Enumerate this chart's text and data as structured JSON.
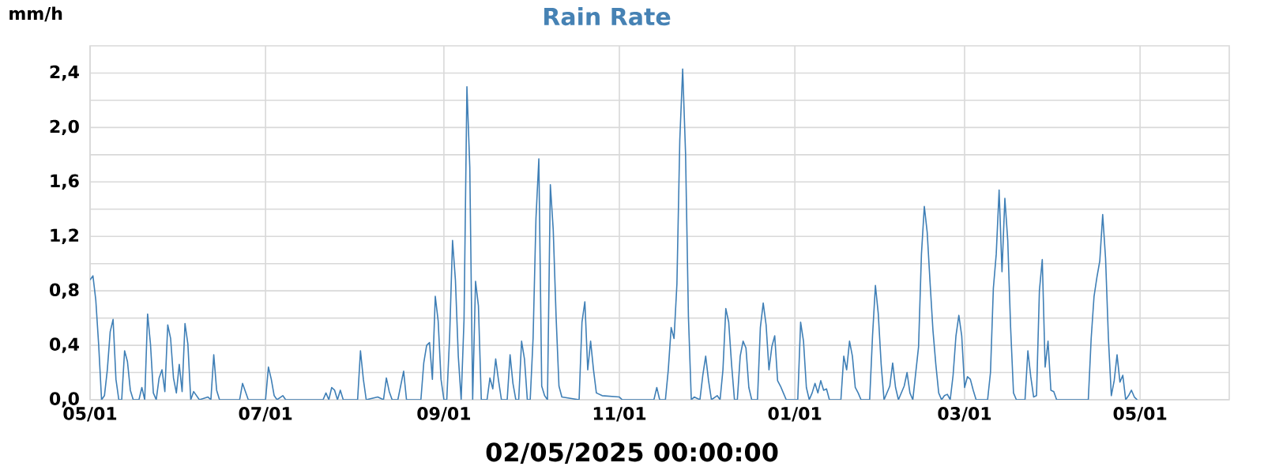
{
  "chart_data": {
    "type": "line",
    "title": "Rain Rate",
    "ylabel": "mm/h",
    "xlabel": "02/05/2025 00:00:00",
    "xlim": [
      "2024-05-01",
      "2025-06-01"
    ],
    "xticks": [
      {
        "value": "2024-05-01",
        "label": "05/01"
      },
      {
        "value": "2024-07-01",
        "label": "07/01"
      },
      {
        "value": "2024-09-01",
        "label": "09/01"
      },
      {
        "value": "2024-11-01",
        "label": "11/01"
      },
      {
        "value": "2025-01-01",
        "label": "01/01"
      },
      {
        "value": "2025-03-01",
        "label": "03/01"
      },
      {
        "value": "2025-05-01",
        "label": "05/01"
      }
    ],
    "ylim": [
      0,
      2.6
    ],
    "yticks": [
      {
        "value": 0,
        "label": "0,0"
      },
      {
        "value": 0.2,
        "label": null
      },
      {
        "value": 0.4,
        "label": "0,4"
      },
      {
        "value": 0.6,
        "label": null
      },
      {
        "value": 0.8,
        "label": "0,8"
      },
      {
        "value": 1.0,
        "label": null
      },
      {
        "value": 1.2,
        "label": "1,2"
      },
      {
        "value": 1.4,
        "label": null
      },
      {
        "value": 1.6,
        "label": "1,6"
      },
      {
        "value": 1.8,
        "label": null
      },
      {
        "value": 2.0,
        "label": "2,0"
      },
      {
        "value": 2.2,
        "label": null
      },
      {
        "value": 2.4,
        "label": "2,4"
      }
    ],
    "grid": true,
    "series": [
      {
        "color": "#3f7fb6",
        "x": [
          "2024-05-01",
          "2024-05-02",
          "2024-05-03",
          "2024-05-04",
          "2024-05-05",
          "2024-05-06",
          "2024-05-07",
          "2024-05-08",
          "2024-05-09",
          "2024-05-10",
          "2024-05-11",
          "2024-05-12",
          "2024-05-13",
          "2024-05-14",
          "2024-05-15",
          "2024-05-16",
          "2024-05-18",
          "2024-05-19",
          "2024-05-20",
          "2024-05-21",
          "2024-05-22",
          "2024-05-23",
          "2024-05-24",
          "2024-05-25",
          "2024-05-26",
          "2024-05-27",
          "2024-05-28",
          "2024-05-29",
          "2024-05-30",
          "2024-05-31",
          "2024-06-01",
          "2024-06-02",
          "2024-06-03",
          "2024-06-04",
          "2024-06-05",
          "2024-06-06",
          "2024-06-08",
          "2024-06-11",
          "2024-06-12",
          "2024-06-13",
          "2024-06-14",
          "2024-06-15",
          "2024-06-22",
          "2024-06-23",
          "2024-06-25",
          "2024-07-01",
          "2024-07-02",
          "2024-07-03",
          "2024-07-04",
          "2024-07-05",
          "2024-07-07",
          "2024-07-08",
          "2024-07-21",
          "2024-07-22",
          "2024-07-23",
          "2024-07-24",
          "2024-07-25",
          "2024-07-26",
          "2024-07-27",
          "2024-07-28",
          "2024-08-02",
          "2024-08-03",
          "2024-08-04",
          "2024-08-05",
          "2024-08-09",
          "2024-08-11",
          "2024-08-12",
          "2024-08-13",
          "2024-08-14",
          "2024-08-16",
          "2024-08-18",
          "2024-08-19",
          "2024-08-23",
          "2024-08-24",
          "2024-08-25",
          "2024-08-26",
          "2024-08-27",
          "2024-08-28",
          "2024-08-29",
          "2024-08-30",
          "2024-08-31",
          "2024-09-01",
          "2024-09-02",
          "2024-09-03",
          "2024-09-04",
          "2024-09-05",
          "2024-09-06",
          "2024-09-07",
          "2024-09-08",
          "2024-09-09",
          "2024-09-10",
          "2024-09-11",
          "2024-09-12",
          "2024-09-13",
          "2024-09-14",
          "2024-09-16",
          "2024-09-17",
          "2024-09-18",
          "2024-09-19",
          "2024-09-20",
          "2024-09-21",
          "2024-09-23",
          "2024-09-24",
          "2024-09-25",
          "2024-09-26",
          "2024-09-27",
          "2024-09-28",
          "2024-09-29",
          "2024-09-30",
          "2024-10-01",
          "2024-10-02",
          "2024-10-03",
          "2024-10-04",
          "2024-10-05",
          "2024-10-06",
          "2024-10-07",
          "2024-10-08",
          "2024-10-09",
          "2024-10-10",
          "2024-10-11",
          "2024-10-12",
          "2024-10-18",
          "2024-10-19",
          "2024-10-20",
          "2024-10-21",
          "2024-10-22",
          "2024-10-23",
          "2024-10-24",
          "2024-10-26",
          "2024-11-01",
          "2024-11-02",
          "2024-11-13",
          "2024-11-14",
          "2024-11-15",
          "2024-11-17",
          "2024-11-18",
          "2024-11-19",
          "2024-11-20",
          "2024-11-21",
          "2024-11-22",
          "2024-11-23",
          "2024-11-24",
          "2024-11-25",
          "2024-11-26",
          "2024-11-27",
          "2024-11-29",
          "2024-11-30",
          "2024-12-01",
          "2024-12-02",
          "2024-12-03",
          "2024-12-05",
          "2024-12-06",
          "2024-12-07",
          "2024-12-08",
          "2024-12-09",
          "2024-12-10",
          "2024-12-11",
          "2024-12-12",
          "2024-12-13",
          "2024-12-14",
          "2024-12-15",
          "2024-12-16",
          "2024-12-17",
          "2024-12-19",
          "2024-12-20",
          "2024-12-21",
          "2024-12-22",
          "2024-12-23",
          "2024-12-24",
          "2024-12-25",
          "2024-12-26",
          "2024-12-27",
          "2024-12-28",
          "2024-12-29",
          "2025-01-02",
          "2025-01-03",
          "2025-01-04",
          "2025-01-05",
          "2025-01-06",
          "2025-01-07",
          "2025-01-08",
          "2025-01-09",
          "2025-01-10",
          "2025-01-11",
          "2025-01-12",
          "2025-01-13",
          "2025-01-17",
          "2025-01-18",
          "2025-01-19",
          "2025-01-20",
          "2025-01-21",
          "2025-01-22",
          "2025-01-23",
          "2025-01-24",
          "2025-01-27",
          "2025-01-28",
          "2025-01-29",
          "2025-01-30",
          "2025-01-31",
          "2025-02-01",
          "2025-02-03",
          "2025-02-04",
          "2025-02-05",
          "2025-02-06",
          "2025-02-08",
          "2025-02-09",
          "2025-02-10",
          "2025-02-11",
          "2025-02-13",
          "2025-02-14",
          "2025-02-15",
          "2025-02-16",
          "2025-02-17",
          "2025-02-18",
          "2025-02-19",
          "2025-02-20",
          "2025-02-21",
          "2025-02-22",
          "2025-02-23",
          "2025-02-24",
          "2025-02-25",
          "2025-02-26",
          "2025-02-27",
          "2025-02-28",
          "2025-03-01",
          "2025-03-02",
          "2025-03-03",
          "2025-03-04",
          "2025-03-05",
          "2025-03-09",
          "2025-03-10",
          "2025-03-11",
          "2025-03-12",
          "2025-03-13",
          "2025-03-14",
          "2025-03-15",
          "2025-03-16",
          "2025-03-17",
          "2025-03-18",
          "2025-03-19",
          "2025-03-22",
          "2025-03-23",
          "2025-03-24",
          "2025-03-25",
          "2025-03-26",
          "2025-03-27",
          "2025-03-28",
          "2025-03-29",
          "2025-03-30",
          "2025-03-31",
          "2025-04-01",
          "2025-04-02",
          "2025-04-13",
          "2025-04-14",
          "2025-04-15",
          "2025-04-16",
          "2025-04-17",
          "2025-04-18",
          "2025-04-19",
          "2025-04-20",
          "2025-04-21",
          "2025-04-22",
          "2025-04-23",
          "2025-04-24",
          "2025-04-25",
          "2025-04-26",
          "2025-04-27",
          "2025-04-28",
          "2025-04-29",
          "2025-04-30"
        ],
        "values": [
          0.88,
          0.91,
          0.73,
          0.4,
          0,
          0.03,
          0.22,
          0.5,
          0.59,
          0.15,
          0,
          0,
          0.36,
          0.28,
          0.07,
          0,
          0,
          0.09,
          0,
          0.63,
          0.41,
          0.05,
          0,
          0.16,
          0.22,
          0.06,
          0.55,
          0.45,
          0.16,
          0.05,
          0.26,
          0.06,
          0.56,
          0.41,
          0,
          0.06,
          0,
          0.02,
          0,
          0.33,
          0.07,
          0,
          0,
          0.12,
          0,
          0,
          0.24,
          0.15,
          0.03,
          0,
          0.03,
          0,
          0,
          0.05,
          0,
          0.09,
          0.07,
          0,
          0.07,
          0,
          0,
          0.36,
          0.15,
          0,
          0.02,
          0,
          0.16,
          0.06,
          0,
          0,
          0.21,
          0,
          0,
          0,
          0.27,
          0.4,
          0.42,
          0.15,
          0.76,
          0.58,
          0.15,
          0,
          0,
          0.47,
          1.17,
          0.88,
          0.32,
          0,
          0.59,
          2.3,
          1.71,
          0,
          0.87,
          0.69,
          0,
          0,
          0.16,
          0.08,
          0.3,
          0.14,
          0,
          0,
          0.33,
          0.12,
          0,
          0,
          0.43,
          0.3,
          0,
          0,
          0.45,
          1.33,
          1.77,
          0.1,
          0.03,
          0,
          1.58,
          1.25,
          0.61,
          0.1,
          0.02,
          0,
          0.57,
          0.72,
          0.22,
          0.43,
          0.22,
          0.05,
          0.03,
          0.02,
          0,
          0,
          0.09,
          0,
          0,
          0.22,
          0.53,
          0.45,
          0.85,
          1.91,
          2.43,
          1.81,
          0.61,
          0,
          0.02,
          0,
          0.18,
          0.32,
          0.14,
          0,
          0.03,
          0,
          0.22,
          0.67,
          0.57,
          0.26,
          0,
          0,
          0.32,
          0.43,
          0.38,
          0.09,
          0,
          0,
          0.53,
          0.71,
          0.55,
          0.22,
          0.39,
          0.47,
          0.14,
          0.1,
          0.05,
          0,
          0,
          0.57,
          0.43,
          0.09,
          0,
          0.05,
          0.12,
          0.05,
          0.14,
          0.07,
          0.08,
          0,
          0,
          0.32,
          0.22,
          0.43,
          0.32,
          0.09,
          0.05,
          0,
          0,
          0.47,
          0.84,
          0.63,
          0.26,
          0,
          0.1,
          0.27,
          0.09,
          0,
          0.1,
          0.2,
          0.05,
          0,
          0.39,
          1.07,
          1.42,
          1.23,
          0.86,
          0.51,
          0.26,
          0.05,
          0,
          0.03,
          0.04,
          0,
          0.18,
          0.47,
          0.62,
          0.47,
          0.09,
          0.17,
          0.15,
          0.07,
          0,
          0,
          0.2,
          0.82,
          1.07,
          1.54,
          0.94,
          1.48,
          1.17,
          0.53,
          0.05,
          0,
          0,
          0.36,
          0.17,
          0.02,
          0.03,
          0.8,
          1.03,
          0.24,
          0.43,
          0.07,
          0.06,
          0,
          0,
          0.45,
          0.76,
          0.9,
          1.02,
          1.36,
          1.04,
          0.45,
          0.03,
          0.14,
          0.33,
          0.13,
          0.18,
          0,
          0.03,
          0.07,
          0.02,
          0
        ]
      }
    ]
  }
}
